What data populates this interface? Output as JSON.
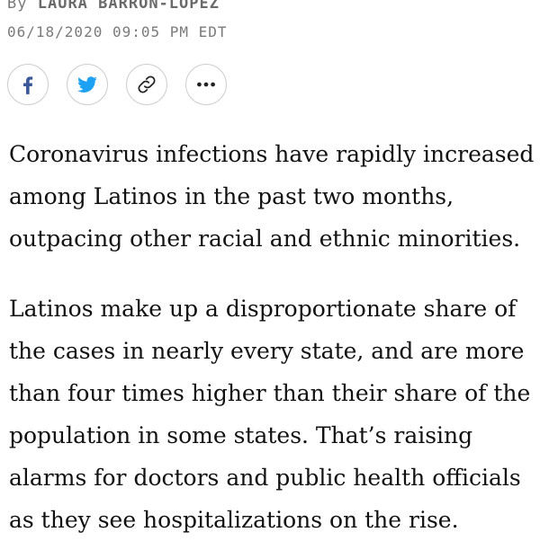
{
  "byline": {
    "prefix": "By",
    "author": "LAURA BARRON-LOPEZ"
  },
  "timestamp": "06/18/2020 09:05 PM EDT",
  "share": [
    {
      "icon": "facebook-icon",
      "color": "#3b5998"
    },
    {
      "icon": "twitter-icon",
      "color": "#1da1f2"
    },
    {
      "icon": "link-icon",
      "color": "#222222"
    },
    {
      "icon": "more-icon",
      "color": "#222222"
    }
  ],
  "article": {
    "paragraphs": [
      {
        "lines": [
          "Coronavirus infections have rapidly increased",
          "among Latinos in the past two months,",
          "outpacing other racial and ethnic minorities."
        ]
      },
      {
        "lines": [
          "Latinos make up a disproportionate share of",
          "the cases in nearly every state, and are more",
          "than four times higher than their share of the",
          "population in some states. That’s raising",
          "alarms for doctors and public health officials",
          "as they see hospitalizations on the rise."
        ]
      }
    ]
  }
}
